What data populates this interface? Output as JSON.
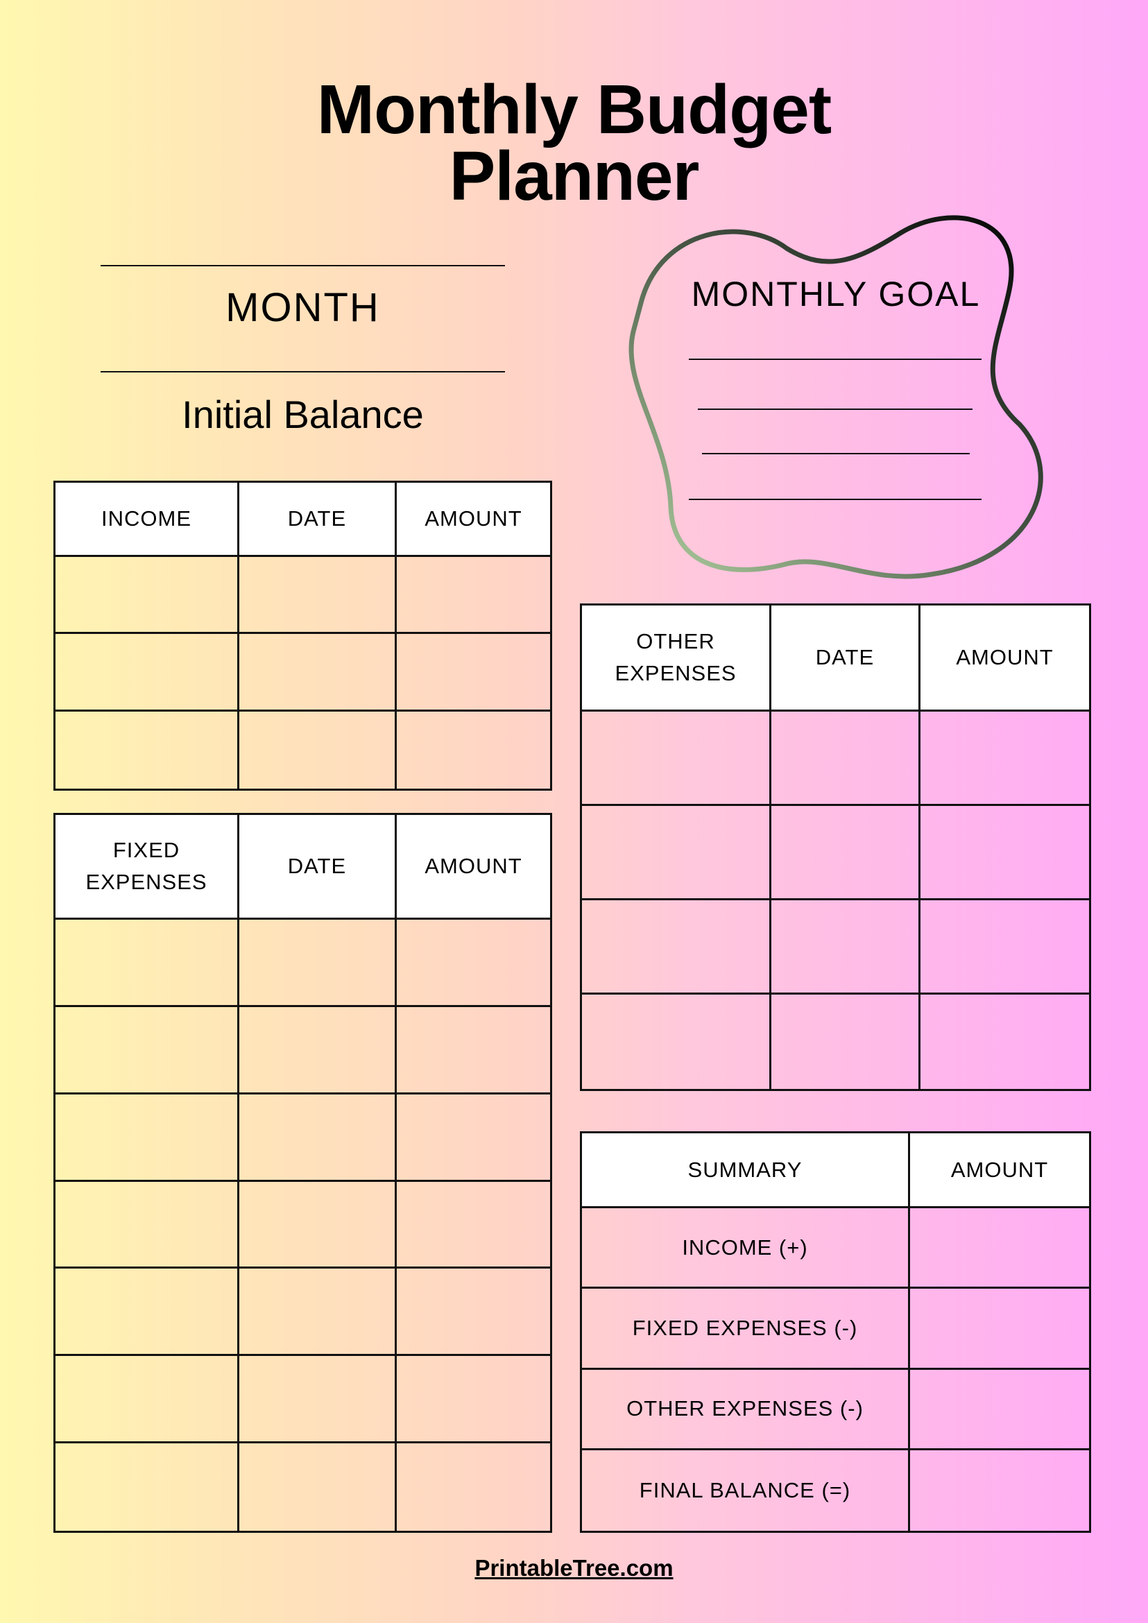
{
  "title": {
    "line1": "Monthly Budget",
    "line2": "Planner"
  },
  "month_label": "MONTH",
  "initial_balance_label": "Initial Balance",
  "goal": {
    "title": "MONTHLY GOAL",
    "stroke_colors": [
      "#a8c89a",
      "#000000"
    ]
  },
  "income_table": {
    "headers": [
      "INCOME",
      "DATE",
      "AMOUNT"
    ],
    "rows": 3
  },
  "fixed_table": {
    "headers": [
      "FIXED EXPENSES",
      "DATE",
      "AMOUNT"
    ],
    "rows": 7
  },
  "other_table": {
    "headers": [
      "OTHER EXPENSES",
      "DATE",
      "AMOUNT"
    ],
    "rows": 4
  },
  "summary_table": {
    "headers": [
      "SUMMARY",
      "AMOUNT"
    ],
    "rows": [
      "INCOME (+)",
      "FIXED EXPENSES (-)",
      "OTHER EXPENSES (-)",
      "FINAL BALANCE (=)"
    ]
  },
  "footer": "PrintableTree.com"
}
